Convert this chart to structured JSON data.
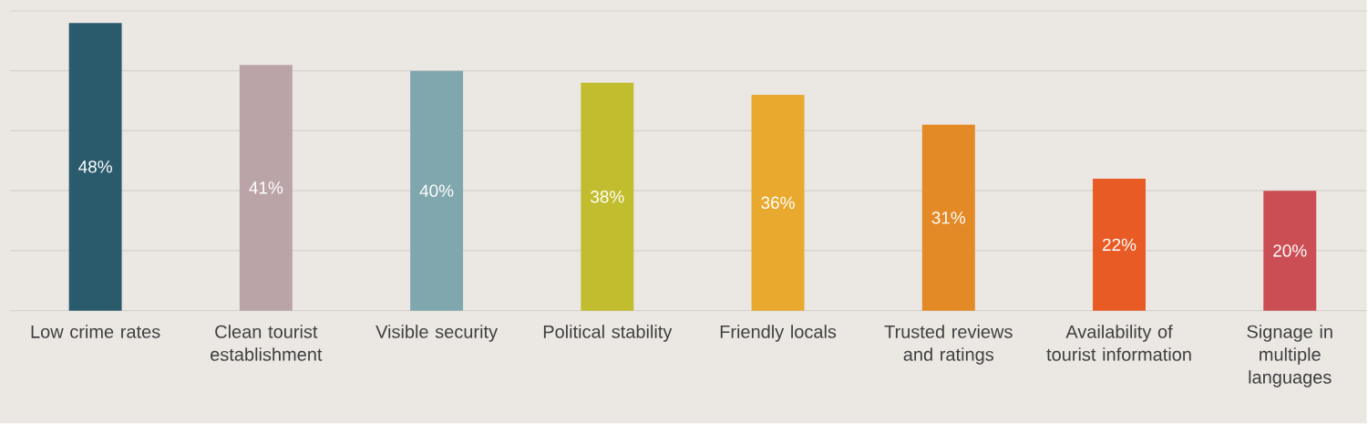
{
  "chart_data": {
    "type": "bar",
    "categories": [
      "Low crime rates",
      "Clean tourist establishment",
      "Visible security",
      "Political stability",
      "Friendly locals",
      "Trusted reviews and ratings",
      "Availability of tourist information",
      "Signage in multiple languages"
    ],
    "values": [
      48,
      41,
      40,
      38,
      36,
      31,
      22,
      20
    ],
    "value_labels": [
      "48%",
      "41%",
      "40%",
      "38%",
      "36%",
      "31%",
      "22%",
      "20%"
    ],
    "colors": [
      "#2a5b6c",
      "#bba4a8",
      "#80a7ae",
      "#c2bd2e",
      "#e8a92e",
      "#e38a27",
      "#e95b25",
      "#cc4e55"
    ],
    "ylim": [
      0,
      50
    ],
    "yticks": [
      {
        "value": 0,
        "label": null
      },
      {
        "value": 10,
        "label": null
      },
      {
        "value": 20,
        "label": null
      },
      {
        "value": 30,
        "label": null
      },
      {
        "value": 40,
        "label": null
      },
      {
        "value": 50,
        "label": null
      }
    ],
    "grid": "y",
    "tick_labels": "x"
  }
}
